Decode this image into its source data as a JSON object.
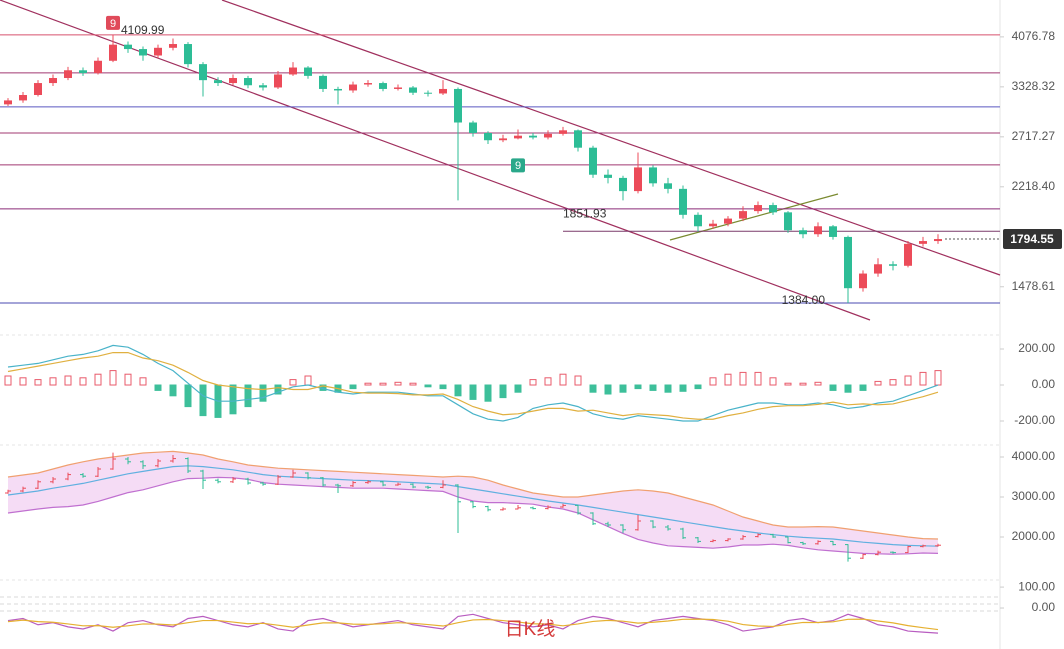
{
  "caption": "日K线",
  "chart_data": [
    {
      "type": "candlestick",
      "log": true,
      "ylim": [
        1292,
        4735
      ],
      "yticks": [
        4076.78,
        3328.32,
        2717.27,
        {
          "value": 2218.4,
          "label": "2218.40"
        },
        1478.61
      ],
      "up_color": "#ec4b59",
      "down_color": "#2dbd96",
      "last_price": 1794.55,
      "levels": [
        {
          "value": 4110,
          "color": "#d8506e"
        },
        {
          "value": 3523,
          "color": "#a03872"
        },
        {
          "value": 3069,
          "color": "#5a58c0"
        },
        {
          "value": 2760,
          "color": "#a03872"
        },
        {
          "value": 2425,
          "color": "#a03872"
        },
        {
          "value": 2028,
          "color": "#8a2a78"
        },
        {
          "value": 1851.93,
          "label": "1851.93",
          "color": "#7a3a6a",
          "from": 37
        },
        {
          "value": 1384,
          "label": "1384.00",
          "color": "#4848b0"
        }
      ],
      "markers": [
        {
          "index": 7,
          "text": "9",
          "color": "#e04a5a"
        },
        {
          "index": 34,
          "text": "9",
          "color": "#2aa88a"
        }
      ],
      "ohlc": [
        [
          3100,
          3180,
          3080,
          3150
        ],
        [
          3150,
          3260,
          3120,
          3220
        ],
        [
          3220,
          3420,
          3200,
          3380
        ],
        [
          3380,
          3500,
          3340,
          3450
        ],
        [
          3450,
          3610,
          3420,
          3560
        ],
        [
          3560,
          3600,
          3480,
          3520
        ],
        [
          3520,
          3750,
          3500,
          3700
        ],
        [
          3700,
          4109.99,
          3680,
          3950
        ],
        [
          3950,
          4000,
          3820,
          3880
        ],
        [
          3880,
          3920,
          3700,
          3780
        ],
        [
          3780,
          3950,
          3740,
          3900
        ],
        [
          3900,
          4050,
          3860,
          3960
        ],
        [
          3960,
          3990,
          3600,
          3650
        ],
        [
          3650,
          3680,
          3200,
          3420
        ],
        [
          3420,
          3460,
          3340,
          3380
        ],
        [
          3380,
          3500,
          3350,
          3450
        ],
        [
          3450,
          3480,
          3310,
          3350
        ],
        [
          3350,
          3380,
          3280,
          3320
        ],
        [
          3320,
          3550,
          3300,
          3500
        ],
        [
          3500,
          3680,
          3480,
          3600
        ],
        [
          3600,
          3620,
          3440,
          3480
        ],
        [
          3480,
          3500,
          3260,
          3300
        ],
        [
          3300,
          3330,
          3100,
          3280
        ],
        [
          3280,
          3400,
          3250,
          3360
        ],
        [
          3360,
          3420,
          3330,
          3380
        ],
        [
          3380,
          3400,
          3270,
          3300
        ],
        [
          3300,
          3360,
          3280,
          3320
        ],
        [
          3320,
          3340,
          3220,
          3250
        ],
        [
          3250,
          3280,
          3200,
          3240
        ],
        [
          3240,
          3420,
          3220,
          3300
        ],
        [
          3300,
          3320,
          2100,
          2880
        ],
        [
          2880,
          2900,
          2720,
          2760
        ],
        [
          2760,
          2780,
          2640,
          2680
        ],
        [
          2680,
          2740,
          2660,
          2700
        ],
        [
          2700,
          2800,
          2690,
          2730
        ],
        [
          2730,
          2760,
          2690,
          2710
        ],
        [
          2710,
          2790,
          2690,
          2750
        ],
        [
          2750,
          2830,
          2730,
          2790
        ],
        [
          2790,
          2800,
          2560,
          2600
        ],
        [
          2600,
          2620,
          2300,
          2330
        ],
        [
          2330,
          2380,
          2250,
          2300
        ],
        [
          2300,
          2320,
          2100,
          2180
        ],
        [
          2180,
          2550,
          2160,
          2400
        ],
        [
          2400,
          2420,
          2220,
          2250
        ],
        [
          2250,
          2300,
          2160,
          2200
        ],
        [
          2200,
          2230,
          1950,
          1980
        ],
        [
          1980,
          2000,
          1850,
          1890
        ],
        [
          1890,
          1940,
          1870,
          1910
        ],
        [
          1910,
          1970,
          1890,
          1950
        ],
        [
          1950,
          2050,
          1930,
          2010
        ],
        [
          2010,
          2090,
          1990,
          2060
        ],
        [
          2060,
          2080,
          1980,
          2000
        ],
        [
          2000,
          2010,
          1840,
          1860
        ],
        [
          1860,
          1880,
          1800,
          1830
        ],
        [
          1830,
          1920,
          1810,
          1890
        ],
        [
          1890,
          1900,
          1790,
          1810
        ],
        [
          1810,
          1820,
          1384,
          1470
        ],
        [
          1470,
          1580,
          1450,
          1560
        ],
        [
          1560,
          1660,
          1540,
          1620
        ],
        [
          1620,
          1640,
          1580,
          1610
        ],
        [
          1610,
          1780,
          1600,
          1760
        ],
        [
          1760,
          1810,
          1740,
          1780
        ],
        [
          1780,
          1830,
          1760,
          1794.55
        ]
      ]
    },
    {
      "type": "macd",
      "ylim": [
        -361,
        250
      ],
      "yticks": [
        {
          "value": 200,
          "label": "200.00"
        },
        {
          "value": 0,
          "label": "0.00"
        },
        {
          "value": -200,
          "label": "-200.00"
        }
      ],
      "up_color": "#e85a6a",
      "down_color": "#3dbf9a",
      "histogram": [
        50,
        40,
        30,
        40,
        50,
        40,
        60,
        80,
        60,
        40,
        -30,
        -60,
        -120,
        -170,
        -180,
        -160,
        -120,
        -90,
        -50,
        30,
        50,
        -30,
        -40,
        -20,
        10,
        10,
        15,
        10,
        -10,
        -20,
        -60,
        -80,
        -90,
        -70,
        -40,
        30,
        40,
        60,
        50,
        -40,
        -50,
        -40,
        -20,
        -30,
        -40,
        -35,
        -20,
        40,
        60,
        70,
        70,
        40,
        10,
        10,
        15,
        -30,
        -40,
        -30,
        20,
        30,
        50,
        70,
        80
      ],
      "series": [
        {
          "color": "#49b3c9",
          "values": [
            100,
            110,
            120,
            140,
            160,
            170,
            190,
            220,
            210,
            170,
            120,
            80,
            10,
            -60,
            -90,
            -90,
            -80,
            -70,
            -40,
            -10,
            0,
            -20,
            -40,
            -50,
            -40,
            -40,
            -40,
            -50,
            -60,
            -60,
            -110,
            -160,
            -190,
            -200,
            -180,
            -130,
            -110,
            -100,
            -120,
            -160,
            -180,
            -190,
            -170,
            -180,
            -190,
            -200,
            -200,
            -170,
            -140,
            -120,
            -100,
            -100,
            -110,
            -110,
            -100,
            -110,
            -130,
            -120,
            -100,
            -90,
            -60,
            -30,
            0
          ]
        },
        {
          "color": "#e0b040",
          "values": [
            75,
            90,
            105,
            120,
            135,
            150,
            160,
            180,
            180,
            150,
            135,
            110,
            70,
            25,
            0,
            -10,
            -20,
            -25,
            -15,
            -25,
            -25,
            -5,
            -20,
            -40,
            -45,
            -45,
            -48,
            -55,
            -55,
            -50,
            -80,
            -120,
            -145,
            -165,
            -160,
            -145,
            -130,
            -130,
            -145,
            -140,
            -155,
            -170,
            -160,
            -165,
            -170,
            -183,
            -190,
            -190,
            -170,
            -155,
            -135,
            -120,
            -115,
            -115,
            -108,
            -95,
            -110,
            -105,
            -110,
            -105,
            -85,
            -65,
            -40
          ]
        }
      ]
    },
    {
      "type": "bollinger",
      "ylim": [
        1175,
        4300
      ],
      "yticks": [
        {
          "value": 4000,
          "label": "4000.00"
        },
        {
          "value": 3000,
          "label": "3000.00"
        },
        {
          "value": 2000,
          "label": "2000.00"
        }
      ],
      "fill": "#f5dcf5",
      "series": [
        {
          "color": "#f0a070",
          "values": [
            3500,
            3550,
            3600,
            3700,
            3800,
            3880,
            3950,
            4000,
            4050,
            4100,
            4120,
            4140,
            4100,
            4050,
            3950,
            3880,
            3800,
            3760,
            3720,
            3700,
            3680,
            3660,
            3640,
            3620,
            3600,
            3580,
            3560,
            3540,
            3520,
            3500,
            3520,
            3500,
            3420,
            3300,
            3200,
            3100,
            3050,
            3000,
            3000,
            3050,
            3100,
            3150,
            3180,
            3150,
            3100,
            3000,
            2900,
            2800,
            2650,
            2500,
            2400,
            2300,
            2250,
            2250,
            2260,
            2250,
            2200,
            2150,
            2100,
            2050,
            2000,
            1960,
            1950
          ]
        },
        {
          "color": "#60b0e0",
          "values": [
            3050,
            3100,
            3150,
            3220,
            3280,
            3340,
            3420,
            3500,
            3580,
            3640,
            3700,
            3760,
            3780,
            3760,
            3720,
            3680,
            3620,
            3560,
            3520,
            3500,
            3480,
            3460,
            3440,
            3420,
            3410,
            3400,
            3380,
            3360,
            3340,
            3320,
            3260,
            3200,
            3140,
            3080,
            3020,
            2960,
            2900,
            2850,
            2800,
            2740,
            2680,
            2620,
            2560,
            2500,
            2440,
            2380,
            2320,
            2260,
            2200,
            2150,
            2100,
            2060,
            2020,
            1990,
            1970,
            1950,
            1910,
            1870,
            1840,
            1810,
            1790,
            1780,
            1770
          ]
        },
        {
          "color": "#c070d0",
          "values": [
            2600,
            2650,
            2700,
            2740,
            2760,
            2800,
            2890,
            3000,
            3110,
            3180,
            3280,
            3380,
            3460,
            3470,
            3490,
            3480,
            3440,
            3360,
            3320,
            3300,
            3280,
            3260,
            3240,
            3220,
            3220,
            3220,
            3200,
            3180,
            3160,
            3140,
            3000,
            2900,
            2860,
            2860,
            2840,
            2820,
            2750,
            2700,
            2600,
            2430,
            2260,
            2090,
            1940,
            1850,
            1780,
            1760,
            1740,
            1720,
            1750,
            1800,
            1800,
            1820,
            1790,
            1730,
            1680,
            1650,
            1620,
            1590,
            1580,
            1570,
            1580,
            1600,
            1590
          ]
        }
      ]
    },
    {
      "type": "kdj",
      "ylim": [
        -148,
        110
      ],
      "yticks": [
        {
          "value": 0,
          "label": "0.00"
        },
        {
          "value": 100,
          "label": "100.00"
        }
      ],
      "series": [
        {
          "color": "#b85cc0",
          "values": [
            -60,
            -50,
            -80,
            -70,
            -90,
            -100,
            -80,
            -110,
            -70,
            -60,
            -80,
            -90,
            -50,
            -40,
            -60,
            -80,
            -90,
            -70,
            -100,
            -110,
            -60,
            -50,
            -70,
            -90,
            -80,
            -70,
            -60,
            -80,
            -90,
            -100,
            -40,
            -30,
            -50,
            -70,
            -80,
            -90,
            -80,
            -100,
            -60,
            -40,
            -50,
            -70,
            -90,
            -60,
            -50,
            -40,
            -50,
            -60,
            -80,
            -110,
            -100,
            -90,
            -60,
            -50,
            -70,
            -60,
            -30,
            -50,
            -80,
            -90,
            -110,
            -115,
            -120
          ]
        },
        {
          "color": "#e6b030",
          "values": [
            -65,
            -58,
            -65,
            -68,
            -76,
            -85,
            -84,
            -92,
            -85,
            -76,
            -77,
            -81,
            -70,
            -60,
            -60,
            -67,
            -75,
            -73,
            -82,
            -92,
            -81,
            -71,
            -71,
            -77,
            -78,
            -75,
            -70,
            -73,
            -79,
            -86,
            -70,
            -57,
            -55,
            -60,
            -67,
            -75,
            -77,
            -85,
            -76,
            -64,
            -59,
            -63,
            -72,
            -68,
            -62,
            -54,
            -53,
            -55,
            -63,
            -79,
            -86,
            -88,
            -78,
            -69,
            -69,
            -66,
            -54,
            -53,
            -62,
            -71,
            -84,
            -94,
            -103
          ]
        }
      ]
    }
  ]
}
